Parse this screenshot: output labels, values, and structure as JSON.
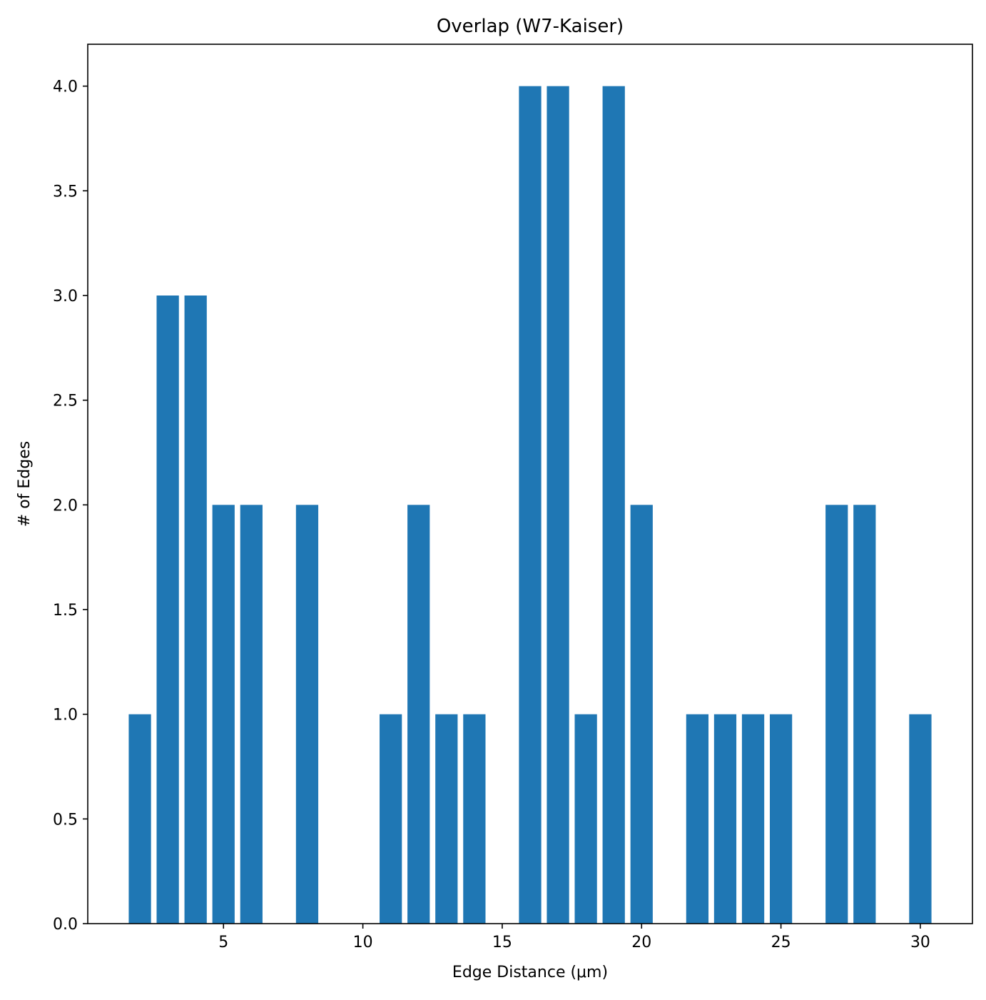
{
  "chart_data": {
    "type": "bar",
    "title": "Overlap (W7-Kaiser)",
    "xlabel": "Edge Distance (μm)",
    "ylabel": "# of Edges",
    "x": [
      2,
      3,
      4,
      5,
      6,
      8,
      11,
      12,
      13,
      14,
      16,
      17,
      18,
      19,
      20,
      22,
      23,
      24,
      25,
      27,
      28,
      30
    ],
    "values": [
      1,
      3,
      3,
      2,
      2,
      2,
      1,
      2,
      1,
      1,
      4,
      4,
      1,
      4,
      2,
      1,
      1,
      1,
      1,
      2,
      2,
      1
    ],
    "bar_width": 0.8,
    "xlim": [
      0.13,
      31.87
    ],
    "ylim": [
      0,
      4.2
    ],
    "x_ticks": [
      5,
      10,
      15,
      20,
      25,
      30
    ],
    "y_ticks": [
      0.0,
      0.5,
      1.0,
      1.5,
      2.0,
      2.5,
      3.0,
      3.5,
      4.0
    ],
    "bar_color": "#1f77b4",
    "grid": false,
    "legend": "none"
  }
}
